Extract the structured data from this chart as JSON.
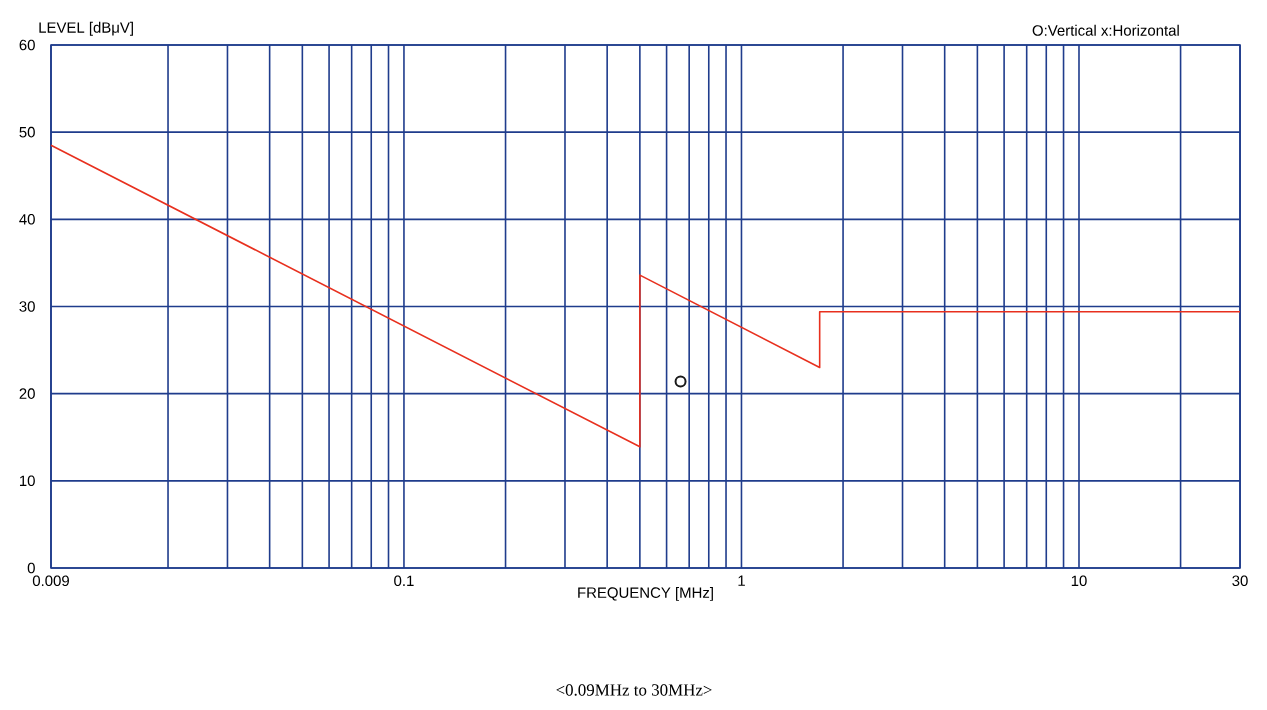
{
  "chart_data": {
    "type": "line",
    "xlabel": "FREQUENCY [MHz]",
    "ylabel": "LEVEL [dBμV]",
    "annotations": [
      "O:Vertical  x:Horizontal",
      "<0.09MHz to 30MHz>"
    ],
    "log": "x",
    "grid": true,
    "xlim": [
      0.009,
      30
    ],
    "ylim": [
      0,
      60
    ],
    "xticks": [
      {
        "value": 0.009,
        "label": "0.009"
      },
      {
        "value": 0.02,
        "label": null
      },
      {
        "value": 0.03,
        "label": null
      },
      {
        "value": 0.04,
        "label": null
      },
      {
        "value": 0.05,
        "label": null
      },
      {
        "value": 0.06,
        "label": null
      },
      {
        "value": 0.07,
        "label": null
      },
      {
        "value": 0.08,
        "label": null
      },
      {
        "value": 0.09,
        "label": null
      },
      {
        "value": 0.1,
        "label": "0.1"
      },
      {
        "value": 0.2,
        "label": null
      },
      {
        "value": 0.3,
        "label": null
      },
      {
        "value": 0.4,
        "label": null
      },
      {
        "value": 0.5,
        "label": null
      },
      {
        "value": 0.6,
        "label": null
      },
      {
        "value": 0.7,
        "label": null
      },
      {
        "value": 0.8,
        "label": null
      },
      {
        "value": 0.9,
        "label": null
      },
      {
        "value": 1,
        "label": "1"
      },
      {
        "value": 2,
        "label": null
      },
      {
        "value": 3,
        "label": null
      },
      {
        "value": 4,
        "label": null
      },
      {
        "value": 5,
        "label": null
      },
      {
        "value": 6,
        "label": null
      },
      {
        "value": 7,
        "label": null
      },
      {
        "value": 8,
        "label": null
      },
      {
        "value": 9,
        "label": null
      },
      {
        "value": 10,
        "label": "10"
      },
      {
        "value": 20,
        "label": null
      },
      {
        "value": 30,
        "label": "30"
      }
    ],
    "yticks": [
      0,
      10,
      20,
      30,
      40,
      50,
      60
    ],
    "series": [
      {
        "color": "#e8301e",
        "marker": "none",
        "line_style": "solid",
        "x": [
          0.009,
          0.5,
          0.5,
          1.705,
          1.705,
          30
        ],
        "values": [
          48.5,
          13.9,
          33.6,
          23.0,
          29.4,
          29.4
        ]
      },
      {
        "type": "scatter",
        "color": "#1a1a1a",
        "marker": "circle",
        "x": [
          0.66
        ],
        "values": [
          21.4
        ]
      }
    ]
  }
}
